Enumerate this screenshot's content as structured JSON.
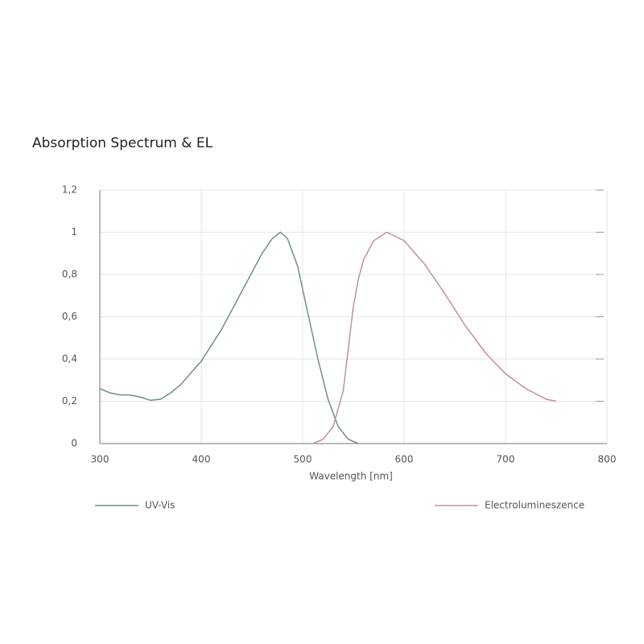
{
  "chart_data": {
    "type": "line",
    "title": "Absorption Spectrum & EL",
    "x_label": "Wavelength [nm]",
    "xlim": [
      300,
      800
    ],
    "xticks": [
      300,
      400,
      500,
      600,
      700,
      800
    ],
    "ylim": [
      0,
      1.2
    ],
    "yticks": [
      0,
      {
        "value": 0.2,
        "label": "0,2"
      },
      {
        "value": 0.4,
        "label": "0,4"
      },
      {
        "value": 0.6,
        "label": "0,6"
      },
      {
        "value": 0.8,
        "label": "0,8"
      },
      1,
      {
        "value": 1.2,
        "label": "1,2"
      }
    ],
    "grid": true,
    "series": [
      {
        "name": "UV-Vis",
        "color": "#6f8d92",
        "x": [
          300,
          310,
          320,
          330,
          340,
          350,
          360,
          370,
          380,
          400,
          420,
          440,
          460,
          470,
          478,
          485,
          495,
          505,
          515,
          525,
          535,
          545,
          555
        ],
        "values": [
          0.26,
          0.24,
          0.23,
          0.23,
          0.22,
          0.205,
          0.21,
          0.24,
          0.28,
          0.39,
          0.54,
          0.72,
          0.9,
          0.97,
          1.0,
          0.97,
          0.84,
          0.62,
          0.4,
          0.21,
          0.08,
          0.02,
          0
        ]
      },
      {
        "name": "Electrolumineszence",
        "color": "#c48f99",
        "x": [
          510,
          520,
          530,
          540,
          545,
          550,
          555,
          560,
          570,
          583,
          600,
          620,
          640,
          660,
          680,
          700,
          720,
          740,
          750
        ],
        "values": [
          0,
          0.02,
          0.08,
          0.25,
          0.45,
          0.65,
          0.78,
          0.87,
          0.96,
          1.0,
          0.96,
          0.85,
          0.71,
          0.56,
          0.43,
          0.33,
          0.26,
          0.21,
          0.2
        ]
      }
    ]
  }
}
